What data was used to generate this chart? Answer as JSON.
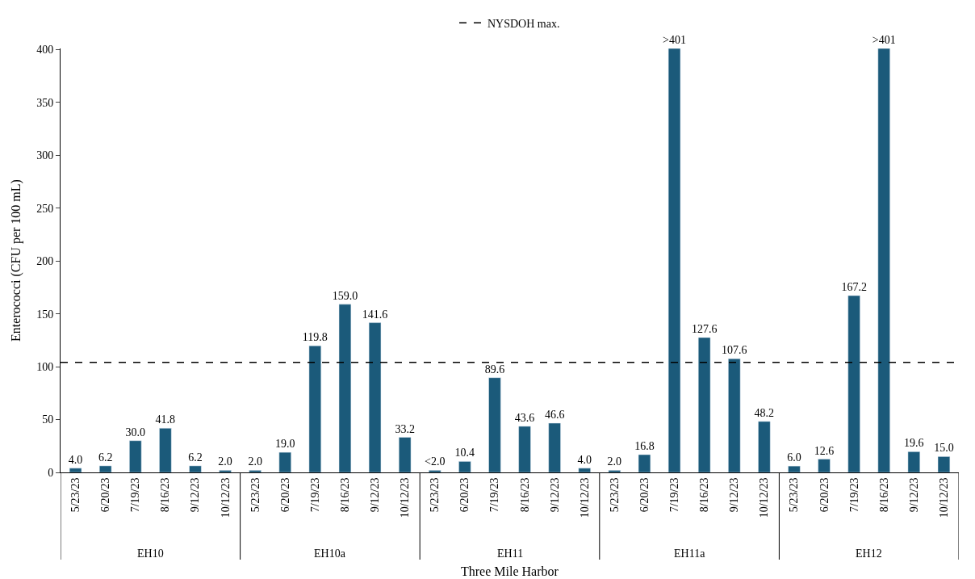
{
  "chart_data": {
    "type": "bar",
    "xlabel": "Three Mile Harbor",
    "ylabel": "Enterococci (CFU per 100 mL)",
    "categories": [
      "5/23/23",
      "6/20/23",
      "7/19/23",
      "8/16/23",
      "9/12/23",
      "10/12/23",
      "5/23/23",
      "6/20/23",
      "7/19/23",
      "8/16/23",
      "9/12/23",
      "10/12/23",
      "5/23/23",
      "6/20/23",
      "7/19/23",
      "8/16/23",
      "9/12/23",
      "10/12/23",
      "5/23/23",
      "6/20/23",
      "7/19/23",
      "8/16/23",
      "9/12/23",
      "10/12/23",
      "5/23/23",
      "6/20/23",
      "7/19/23",
      "8/16/23",
      "9/12/23",
      "10/12/23"
    ],
    "annotations": [
      "EH10",
      "EH10a",
      "EH11",
      "EH11a",
      "EH12"
    ],
    "values": [
      4.0,
      6.2,
      30.0,
      41.8,
      6.2,
      2.0,
      2.0,
      19.0,
      119.8,
      159.0,
      141.6,
      33.2,
      2.0,
      10.4,
      89.6,
      43.6,
      46.6,
      4.0,
      2.0,
      16.8,
      401,
      127.6,
      107.6,
      48.2,
      6.0,
      12.6,
      167.2,
      401,
      19.6,
      15.0
    ],
    "value_labels": [
      "4.0",
      "6.2",
      "30.0",
      "41.8",
      "6.2",
      "2.0",
      "2.0",
      "19.0",
      "119.8",
      "159.0",
      "141.6",
      "33.2",
      "<2.0",
      "10.4",
      "89.6",
      "43.6",
      "46.6",
      "4.0",
      "2.0",
      "16.8",
      ">401",
      "127.6",
      "107.6",
      "48.2",
      "6.0",
      "12.6",
      "167.2",
      ">401",
      "19.6",
      "15.0"
    ],
    "color": "#1b5a7a",
    "ylim": [
      0,
      401
    ],
    "yticks": [
      0,
      50,
      100,
      150,
      200,
      250,
      300,
      350,
      400
    ],
    "legend": "top",
    "ref_lines": [
      {
        "axis": "y",
        "value": 104,
        "label": "NYSDOH max.",
        "color": "#000000",
        "line_style": "dashed"
      }
    ]
  }
}
